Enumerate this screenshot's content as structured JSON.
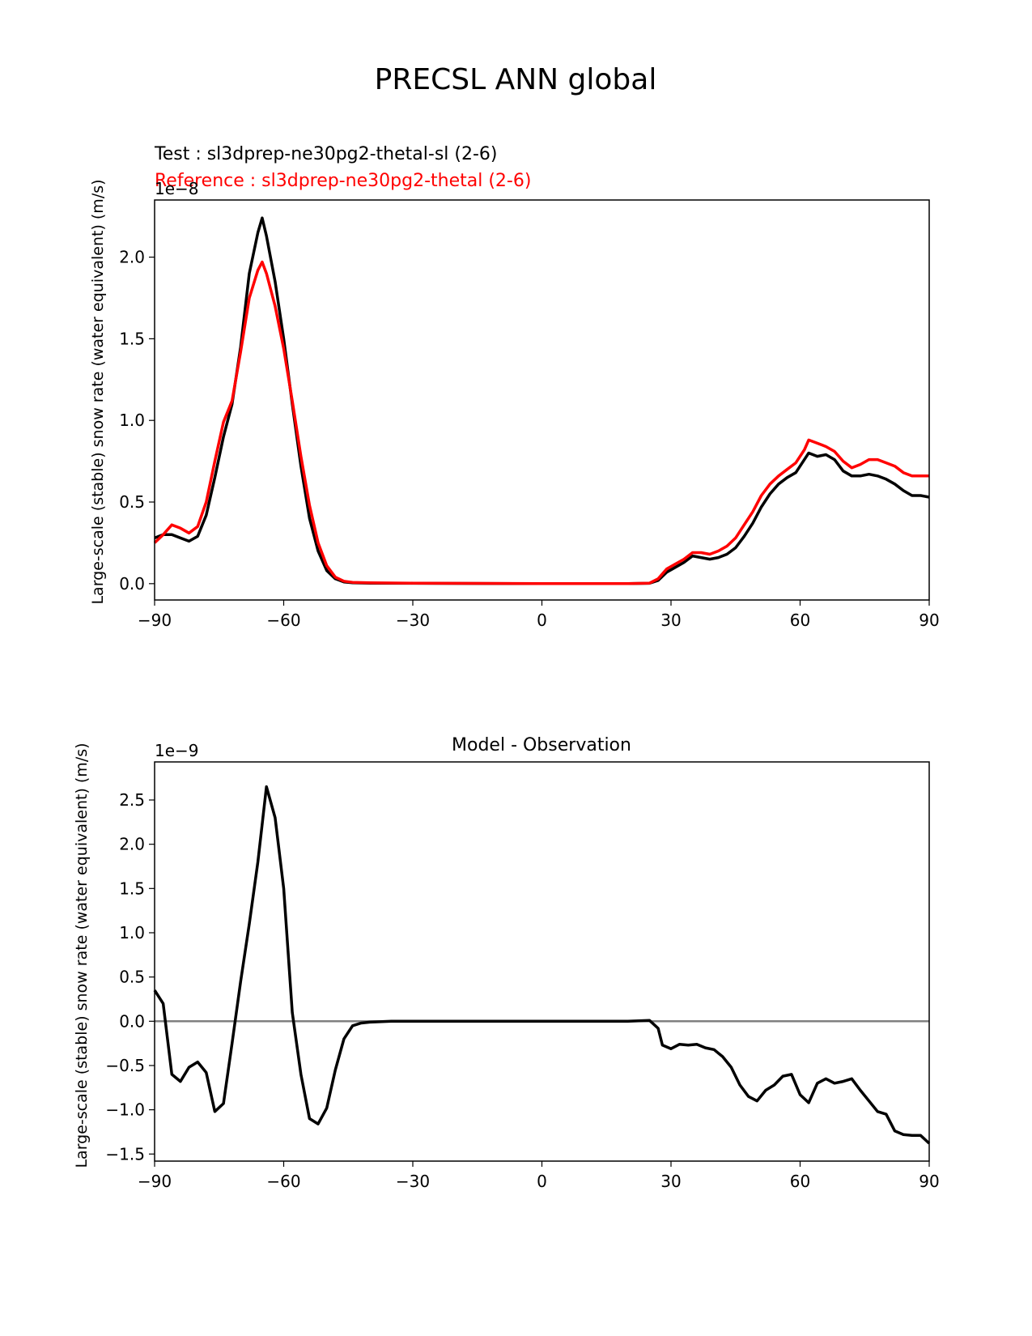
{
  "title": "PRECSL ANN global",
  "chart_data": [
    {
      "type": "line",
      "title": "",
      "test_label": "Test : sl3dprep-ne30pg2-thetal-sl (2-6)",
      "ref_label": "Reference : sl3dprep-ne30pg2-thetal (2-6)",
      "ylabel": "Large-scale (stable) snow rate (water equivalent) (m/s)",
      "scale_label": "1e−8",
      "xlim": [
        -90,
        90
      ],
      "ylim": [
        -0.1,
        2.35
      ],
      "xticks": [
        "−90",
        "−60",
        "−30",
        "0",
        "30",
        "60",
        "90"
      ],
      "yticks": [
        "0.0",
        "0.5",
        "1.0",
        "1.5",
        "2.0"
      ],
      "ytick_values": [
        0.0,
        0.5,
        1.0,
        1.5,
        2.0
      ],
      "series": [
        {
          "name": "Test",
          "color": "#000000",
          "points": [
            [
              -90,
              0.28
            ],
            [
              -88,
              0.3
            ],
            [
              -86,
              0.3
            ],
            [
              -84,
              0.28
            ],
            [
              -82,
              0.26
            ],
            [
              -80,
              0.29
            ],
            [
              -78,
              0.42
            ],
            [
              -76,
              0.65
            ],
            [
              -74,
              0.9
            ],
            [
              -72,
              1.1
            ],
            [
              -70,
              1.45
            ],
            [
              -68,
              1.9
            ],
            [
              -66,
              2.15
            ],
            [
              -65,
              2.24
            ],
            [
              -64,
              2.13
            ],
            [
              -62,
              1.85
            ],
            [
              -60,
              1.5
            ],
            [
              -58,
              1.1
            ],
            [
              -56,
              0.72
            ],
            [
              -54,
              0.4
            ],
            [
              -52,
              0.2
            ],
            [
              -50,
              0.08
            ],
            [
              -48,
              0.03
            ],
            [
              -46,
              0.01
            ],
            [
              -44,
              0.005
            ],
            [
              -40,
              0.003
            ],
            [
              -30,
              0.002
            ],
            [
              0,
              0.0
            ],
            [
              20,
              0.0
            ],
            [
              25,
              0.002
            ],
            [
              27,
              0.02
            ],
            [
              29,
              0.07
            ],
            [
              31,
              0.1
            ],
            [
              33,
              0.13
            ],
            [
              35,
              0.17
            ],
            [
              37,
              0.16
            ],
            [
              39,
              0.15
            ],
            [
              41,
              0.16
            ],
            [
              43,
              0.18
            ],
            [
              45,
              0.22
            ],
            [
              47,
              0.29
            ],
            [
              49,
              0.37
            ],
            [
              51,
              0.47
            ],
            [
              53,
              0.55
            ],
            [
              55,
              0.61
            ],
            [
              57,
              0.65
            ],
            [
              59,
              0.68
            ],
            [
              61,
              0.76
            ],
            [
              62,
              0.8
            ],
            [
              64,
              0.78
            ],
            [
              66,
              0.79
            ],
            [
              68,
              0.76
            ],
            [
              70,
              0.69
            ],
            [
              72,
              0.66
            ],
            [
              74,
              0.66
            ],
            [
              76,
              0.67
            ],
            [
              78,
              0.66
            ],
            [
              80,
              0.64
            ],
            [
              82,
              0.61
            ],
            [
              84,
              0.57
            ],
            [
              86,
              0.54
            ],
            [
              88,
              0.54
            ],
            [
              90,
              0.53
            ]
          ]
        },
        {
          "name": "Reference",
          "color": "#ff0000",
          "points": [
            [
              -90,
              0.25
            ],
            [
              -88,
              0.3
            ],
            [
              -86,
              0.36
            ],
            [
              -84,
              0.34
            ],
            [
              -82,
              0.31
            ],
            [
              -80,
              0.35
            ],
            [
              -78,
              0.5
            ],
            [
              -76,
              0.75
            ],
            [
              -74,
              0.99
            ],
            [
              -72,
              1.12
            ],
            [
              -70,
              1.42
            ],
            [
              -68,
              1.75
            ],
            [
              -66,
              1.92
            ],
            [
              -65,
              1.97
            ],
            [
              -64,
              1.9
            ],
            [
              -62,
              1.7
            ],
            [
              -60,
              1.44
            ],
            [
              -58,
              1.12
            ],
            [
              -56,
              0.78
            ],
            [
              -54,
              0.48
            ],
            [
              -52,
              0.25
            ],
            [
              -50,
              0.11
            ],
            [
              -48,
              0.04
            ],
            [
              -46,
              0.015
            ],
            [
              -44,
              0.008
            ],
            [
              -40,
              0.005
            ],
            [
              -30,
              0.003
            ],
            [
              0,
              0.0
            ],
            [
              20,
              0.0
            ],
            [
              25,
              0.003
            ],
            [
              27,
              0.03
            ],
            [
              29,
              0.09
            ],
            [
              31,
              0.12
            ],
            [
              33,
              0.15
            ],
            [
              35,
              0.19
            ],
            [
              37,
              0.19
            ],
            [
              39,
              0.18
            ],
            [
              41,
              0.2
            ],
            [
              43,
              0.23
            ],
            [
              45,
              0.28
            ],
            [
              47,
              0.36
            ],
            [
              49,
              0.44
            ],
            [
              51,
              0.54
            ],
            [
              53,
              0.61
            ],
            [
              55,
              0.66
            ],
            [
              57,
              0.7
            ],
            [
              59,
              0.74
            ],
            [
              61,
              0.82
            ],
            [
              62,
              0.88
            ],
            [
              64,
              0.86
            ],
            [
              66,
              0.84
            ],
            [
              68,
              0.81
            ],
            [
              70,
              0.75
            ],
            [
              72,
              0.71
            ],
            [
              74,
              0.73
            ],
            [
              76,
              0.76
            ],
            [
              78,
              0.76
            ],
            [
              80,
              0.74
            ],
            [
              82,
              0.72
            ],
            [
              84,
              0.68
            ],
            [
              86,
              0.66
            ],
            [
              88,
              0.66
            ],
            [
              90,
              0.66
            ]
          ]
        }
      ]
    },
    {
      "type": "line",
      "title": "Model - Observation",
      "ylabel": "Large-scale (stable) snow rate (water equivalent) (m/s)",
      "scale_label": "1e−9",
      "xlim": [
        -90,
        90
      ],
      "ylim": [
        -1.58,
        2.93
      ],
      "xticks": [
        "−90",
        "−60",
        "−30",
        "0",
        "30",
        "60",
        "90"
      ],
      "yticks": [
        "−1.5",
        "−1.0",
        "−0.5",
        "0.0",
        "0.5",
        "1.0",
        "1.5",
        "2.0",
        "2.5"
      ],
      "ytick_values": [
        -1.5,
        -1.0,
        -0.5,
        0.0,
        0.5,
        1.0,
        1.5,
        2.0,
        2.5
      ],
      "zero_line_color": "#808080",
      "series": [
        {
          "name": "",
          "color": "#000000",
          "points": [
            [
              -90,
              0.35
            ],
            [
              -88,
              0.2
            ],
            [
              -86,
              -0.6
            ],
            [
              -84,
              -0.68
            ],
            [
              -82,
              -0.52
            ],
            [
              -80,
              -0.46
            ],
            [
              -78,
              -0.58
            ],
            [
              -76,
              -1.02
            ],
            [
              -74,
              -0.93
            ],
            [
              -72,
              -0.25
            ],
            [
              -70,
              0.45
            ],
            [
              -68,
              1.1
            ],
            [
              -66,
              1.8
            ],
            [
              -64,
              2.65
            ],
            [
              -62,
              2.3
            ],
            [
              -60,
              1.5
            ],
            [
              -58,
              0.1
            ],
            [
              -56,
              -0.6
            ],
            [
              -54,
              -1.1
            ],
            [
              -52,
              -1.16
            ],
            [
              -50,
              -0.98
            ],
            [
              -48,
              -0.55
            ],
            [
              -46,
              -0.2
            ],
            [
              -44,
              -0.05
            ],
            [
              -42,
              -0.02
            ],
            [
              -40,
              -0.01
            ],
            [
              -35,
              0.0
            ],
            [
              -25,
              0.0
            ],
            [
              0,
              0.0
            ],
            [
              20,
              0.0
            ],
            [
              25,
              0.01
            ],
            [
              27,
              -0.08
            ],
            [
              28,
              -0.27
            ],
            [
              30,
              -0.31
            ],
            [
              32,
              -0.26
            ],
            [
              34,
              -0.27
            ],
            [
              36,
              -0.26
            ],
            [
              38,
              -0.3
            ],
            [
              40,
              -0.32
            ],
            [
              42,
              -0.4
            ],
            [
              44,
              -0.52
            ],
            [
              46,
              -0.72
            ],
            [
              48,
              -0.85
            ],
            [
              50,
              -0.9
            ],
            [
              52,
              -0.78
            ],
            [
              54,
              -0.72
            ],
            [
              56,
              -0.62
            ],
            [
              58,
              -0.6
            ],
            [
              60,
              -0.83
            ],
            [
              62,
              -0.92
            ],
            [
              64,
              -0.7
            ],
            [
              66,
              -0.65
            ],
            [
              68,
              -0.7
            ],
            [
              70,
              -0.68
            ],
            [
              72,
              -0.65
            ],
            [
              74,
              -0.78
            ],
            [
              76,
              -0.9
            ],
            [
              78,
              -1.02
            ],
            [
              80,
              -1.05
            ],
            [
              82,
              -1.24
            ],
            [
              84,
              -1.28
            ],
            [
              86,
              -1.29
            ],
            [
              88,
              -1.29
            ],
            [
              90,
              -1.38
            ]
          ]
        }
      ]
    }
  ]
}
